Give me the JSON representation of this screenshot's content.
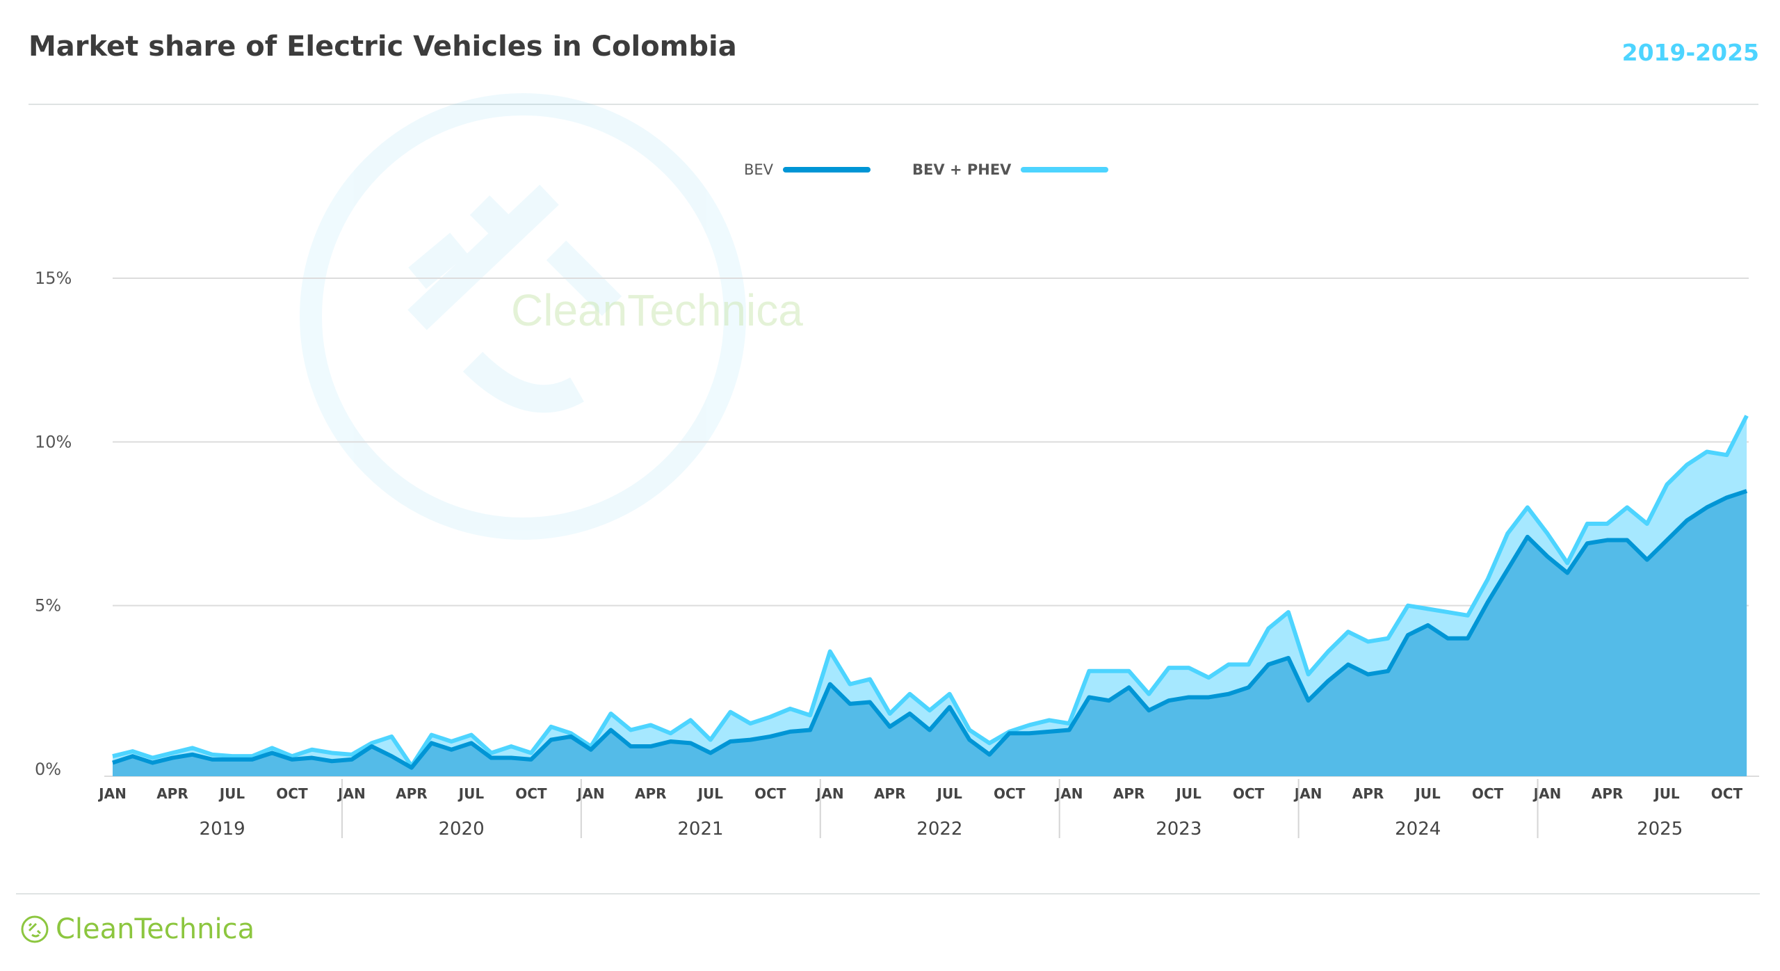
{
  "header": {
    "title": "Market share of Electric Vehicles in Colombia",
    "range": "2019-2025"
  },
  "watermark": {
    "text": "CleanTechnica"
  },
  "footer": {
    "logo_text": "CleanTechnica",
    "logo_icon": "cleantechnica-plug-icon"
  },
  "colors": {
    "bev_line": "#0095d5",
    "bev_fill": "#54bbe8",
    "total_line": "#4dd4ff",
    "total_fill": "#a6e8ff",
    "accent": "#4dd4ff",
    "logo": "#8cc63f"
  },
  "chart_data": {
    "type": "area",
    "title": "Market share of Electric Vehicles in Colombia",
    "xlabel": "",
    "ylabel": "",
    "ylim": [
      0,
      15
    ],
    "yticks": [
      0,
      5,
      10,
      15
    ],
    "ytick_labels": [
      "0%",
      "5%",
      "10%",
      "15%"
    ],
    "grid": true,
    "legend_position": "top-center",
    "x_start": "2019-01",
    "x_end": "2025-11",
    "month_tick_labels": [
      "JAN",
      "APR",
      "JUL",
      "OCT"
    ],
    "years": [
      "2019",
      "2020",
      "2021",
      "2022",
      "2023",
      "2024",
      "2025"
    ],
    "series": [
      {
        "name": "BEV",
        "values": [
          0.2,
          0.4,
          0.2,
          0.35,
          0.45,
          0.3,
          0.3,
          0.3,
          0.5,
          0.3,
          0.35,
          0.25,
          0.3,
          0.7,
          0.4,
          0.05,
          0.8,
          0.6,
          0.8,
          0.35,
          0.35,
          0.3,
          0.9,
          1.0,
          0.6,
          1.2,
          0.7,
          0.7,
          0.85,
          0.8,
          0.5,
          0.85,
          0.9,
          1.0,
          1.15,
          1.2,
          2.6,
          2.0,
          2.05,
          1.3,
          1.7,
          1.2,
          1.9,
          0.9,
          0.45,
          1.1,
          1.1,
          1.15,
          1.2,
          2.2,
          2.1,
          2.5,
          1.8,
          2.1,
          2.2,
          2.2,
          2.3,
          2.5,
          3.2,
          3.4,
          2.1,
          2.7,
          3.2,
          2.9,
          3.0,
          4.1,
          4.4,
          4.0,
          4.0,
          5.1,
          6.1,
          7.1,
          6.5,
          6.0,
          6.9,
          7.0,
          7.0,
          6.4,
          7.0,
          7.6,
          8.0,
          8.3,
          8.5
        ]
      },
      {
        "name": "BEV + PHEV",
        "values": [
          0.4,
          0.55,
          0.35,
          0.5,
          0.65,
          0.45,
          0.4,
          0.4,
          0.65,
          0.4,
          0.6,
          0.5,
          0.45,
          0.8,
          1.0,
          0.1,
          1.05,
          0.85,
          1.05,
          0.5,
          0.7,
          0.5,
          1.3,
          1.1,
          0.7,
          1.7,
          1.2,
          1.35,
          1.1,
          1.5,
          0.9,
          1.75,
          1.4,
          1.6,
          1.85,
          1.65,
          3.6,
          2.6,
          2.75,
          1.7,
          2.3,
          1.8,
          2.3,
          1.2,
          0.8,
          1.15,
          1.35,
          1.5,
          1.4,
          3.0,
          3.0,
          3.0,
          2.3,
          3.1,
          3.1,
          2.8,
          3.2,
          3.2,
          4.3,
          4.8,
          2.9,
          3.6,
          4.2,
          3.9,
          4.0,
          5.0,
          4.9,
          4.8,
          4.7,
          5.8,
          7.2,
          8.0,
          7.2,
          6.3,
          7.5,
          7.5,
          8.0,
          7.5,
          8.7,
          9.3,
          9.7,
          9.6,
          10.8
        ]
      }
    ]
  }
}
